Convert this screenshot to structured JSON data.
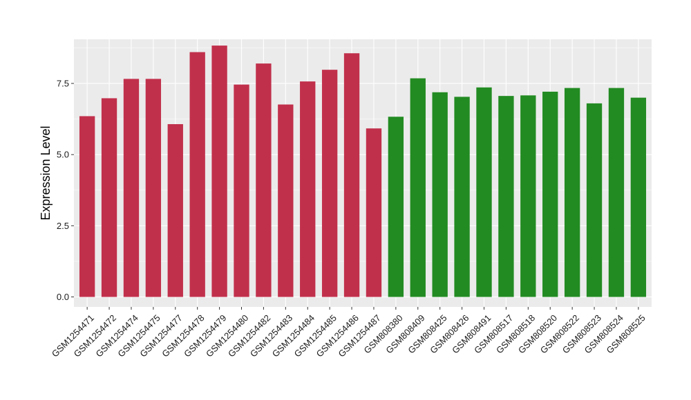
{
  "chart_data": {
    "type": "bar",
    "title": "",
    "xlabel": "",
    "ylabel": "Expression Level",
    "ylim": [
      -0.35,
      9.05
    ],
    "yticks": [
      0.0,
      2.5,
      5.0,
      7.5
    ],
    "ytick_labels": [
      "0.0",
      "2.5",
      "5.0",
      "7.5"
    ],
    "grid": true,
    "categories": [
      "GSM1254471",
      "GSM1254472",
      "GSM1254474",
      "GSM1254475",
      "GSM1254477",
      "GSM1254478",
      "GSM1254479",
      "GSM1254480",
      "GSM1254482",
      "GSM1254483",
      "GSM1254484",
      "GSM1254485",
      "GSM1254486",
      "GSM1254487",
      "GSM808380",
      "GSM808409",
      "GSM808425",
      "GSM808426",
      "GSM808491",
      "GSM808517",
      "GSM808518",
      "GSM808520",
      "GSM808522",
      "GSM808523",
      "GSM808524",
      "GSM808525"
    ],
    "values": [
      6.35,
      6.98,
      7.66,
      7.66,
      6.07,
      8.6,
      8.83,
      7.46,
      8.2,
      6.76,
      7.57,
      7.98,
      8.56,
      5.92,
      6.33,
      7.68,
      7.19,
      7.03,
      7.36,
      7.06,
      7.08,
      7.21,
      7.34,
      6.8,
      7.34,
      7.0
    ],
    "bar_colors": [
      "#c1304b",
      "#c1304b",
      "#c1304b",
      "#c1304b",
      "#c1304b",
      "#c1304b",
      "#c1304b",
      "#c1304b",
      "#c1304b",
      "#c1304b",
      "#c1304b",
      "#c1304b",
      "#c1304b",
      "#c1304b",
      "#228b22",
      "#228b22",
      "#228b22",
      "#228b22",
      "#228b22",
      "#228b22",
      "#228b22",
      "#228b22",
      "#228b22",
      "#228b22",
      "#228b22",
      "#228b22"
    ],
    "panel_background": "#ebebeb",
    "grid_color": "#ffffff"
  }
}
